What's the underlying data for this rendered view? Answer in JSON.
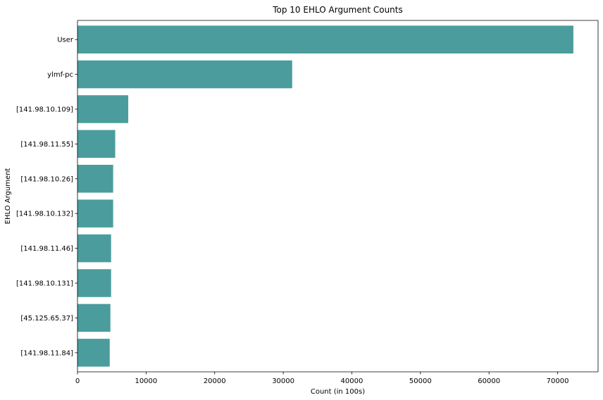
{
  "chart_data": {
    "type": "bar",
    "orientation": "horizontal",
    "title": "Top 10 EHLO Argument Counts",
    "xlabel": "Count (in 100s)",
    "ylabel": "EHLO Argument",
    "categories": [
      "User",
      "ylmf-pc",
      "[141.98.10.109]",
      "[141.98.11.55]",
      "[141.98.10.26]",
      "[141.98.10.132]",
      "[141.98.11.46]",
      "[141.98.10.131]",
      "[45.125.65.37]",
      "[141.98.11.84]"
    ],
    "values": [
      72300,
      31300,
      7400,
      5500,
      5200,
      5200,
      4900,
      4900,
      4800,
      4700
    ],
    "xlim": [
      0,
      75900
    ],
    "xticks": [
      0,
      10000,
      20000,
      30000,
      40000,
      50000,
      60000,
      70000
    ],
    "xtick_labels": [
      "0",
      "10000",
      "20000",
      "30000",
      "40000",
      "50000",
      "60000",
      "70000"
    ],
    "grid": false,
    "bar_color": "#4a9d9c"
  }
}
